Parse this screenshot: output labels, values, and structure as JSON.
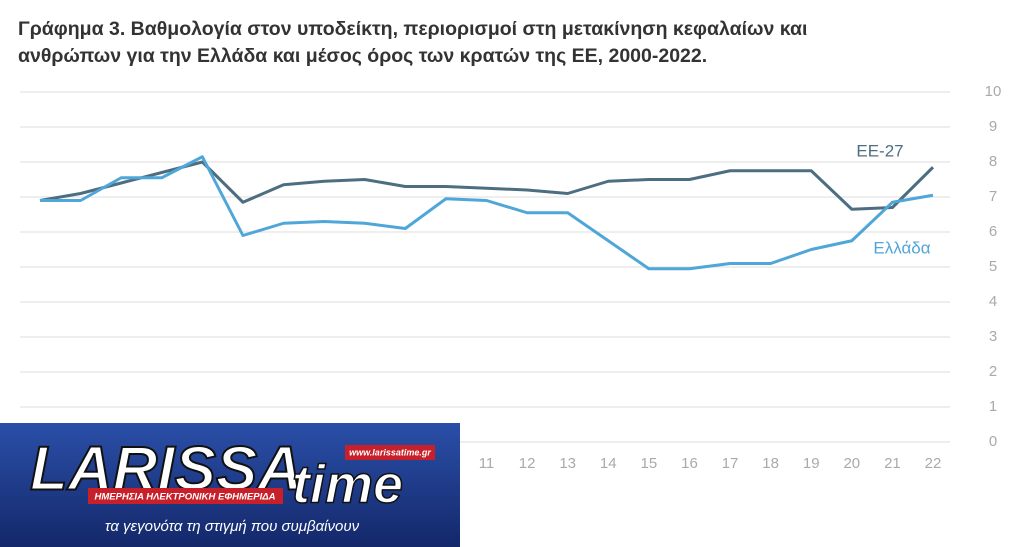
{
  "chart_data": {
    "type": "line",
    "title": [
      "Γράφημα 3. Βαθμολογία στον υποδείκτη, περιορισμοί στη μετακίνηση κεφαλαίων και",
      "ανθρώπων για την Ελλάδα και μέσος όρος των κρατών της ΕΕ, 2000-2022."
    ],
    "categories": [
      null,
      null,
      null,
      null,
      null,
      null,
      null,
      null,
      null,
      null,
      null,
      "11",
      "12",
      "13",
      "14",
      "15",
      "16",
      "17",
      "18",
      "19",
      "20",
      "21",
      "22"
    ],
    "series": [
      {
        "name": "ΕΕ-27",
        "color": "#4d6e80",
        "values": [
          6.9,
          7.1,
          7.4,
          7.7,
          8.0,
          6.85,
          7.35,
          7.45,
          7.5,
          7.3,
          7.3,
          7.25,
          7.2,
          7.1,
          7.45,
          7.5,
          7.5,
          7.75,
          7.75,
          7.75,
          6.65,
          6.7,
          7.85
        ]
      },
      {
        "name": "Ελλάδα",
        "color": "#4fa6d8",
        "values": [
          6.9,
          6.9,
          7.55,
          7.55,
          8.15,
          5.9,
          6.25,
          6.3,
          6.25,
          6.1,
          6.95,
          6.9,
          6.55,
          6.55,
          5.75,
          4.95,
          4.95,
          5.1,
          5.1,
          5.5,
          5.75,
          6.85,
          7.05
        ]
      }
    ],
    "ylim": [
      0,
      10
    ],
    "yticks": [
      0,
      1,
      2,
      3,
      4,
      5,
      6,
      7,
      8,
      9,
      10
    ],
    "grid": true
  },
  "logo": {
    "name": "LARISSA",
    "name2": "time",
    "url": "www.larissatime.gr",
    "subtitle": "ΗΜΕΡΗΣΙΑ ΗΛΕΚΤΡΟΝΙΚΗ ΕΦΗΜΕΡΙΔΑ",
    "slogan": "τα γεγονότα τη στιγμή που συμβαίνουν"
  }
}
